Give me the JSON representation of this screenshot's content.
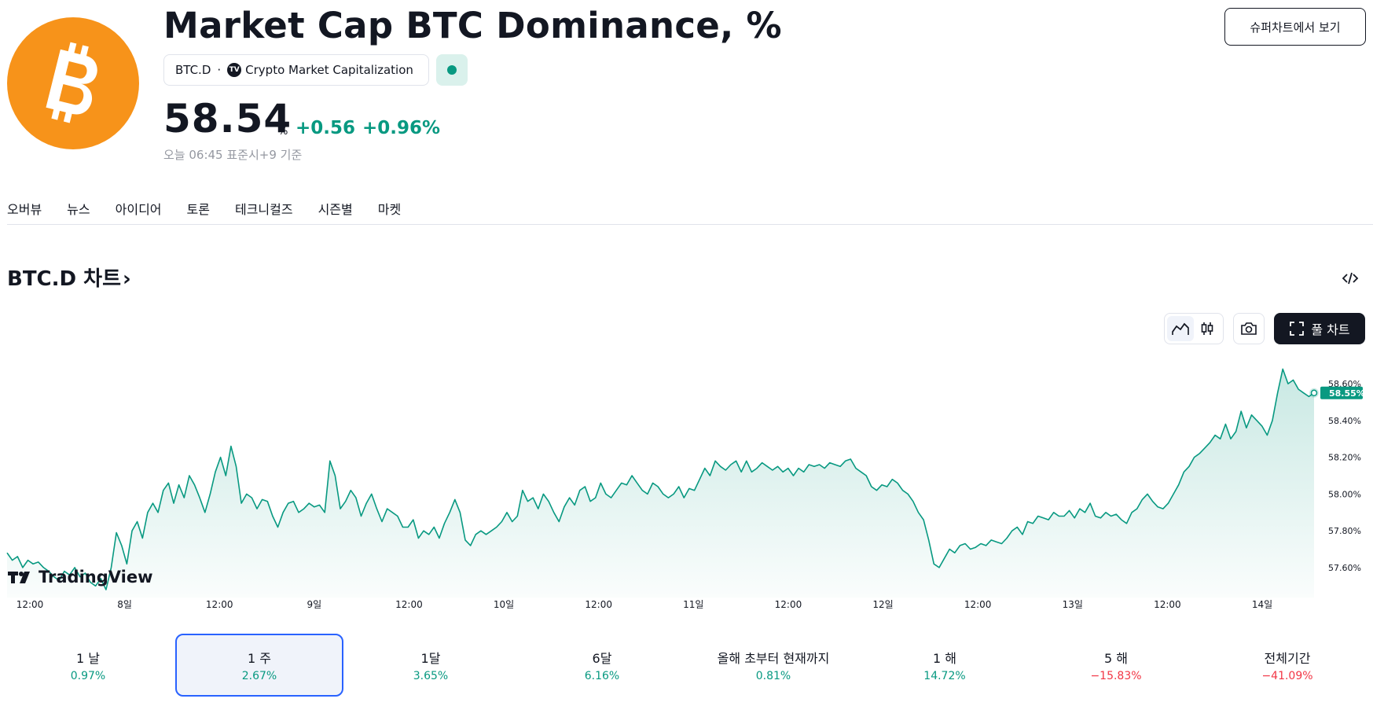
{
  "header": {
    "title": "Market Cap BTC Dominance, %",
    "symbol": "BTC.D",
    "exchange": "Crypto Market Capitalization",
    "exchange_badge": "TV",
    "price": "58.54",
    "price_unit": "%",
    "change_abs": "+0.56",
    "change_pct": "+0.96%",
    "timestamp": "오늘 06:45 표준시+9 기준",
    "supercharts_label": "슈퍼차트에서 보기",
    "status": "market-open",
    "logo_icon": "bitcoin-logo-icon",
    "logo_color": "#f7931a"
  },
  "tabs": [
    {
      "label": "오버뷰",
      "active": true
    },
    {
      "label": "뉴스",
      "active": false
    },
    {
      "label": "아이디어",
      "active": false
    },
    {
      "label": "토론",
      "active": false
    },
    {
      "label": "테크니컬즈",
      "active": false
    },
    {
      "label": "시즌별",
      "active": false
    },
    {
      "label": "마켓",
      "active": false
    }
  ],
  "chart_section": {
    "title": "BTC.D 차트",
    "chevron": "›",
    "full_chart_label": "풀 차트",
    "watermark": "TradingView",
    "icons": [
      "embed-code-icon",
      "area-chart-icon",
      "candles-icon",
      "camera-icon",
      "fullscreen-icon"
    ]
  },
  "chart_data": {
    "type": "area",
    "x_tick_labels": [
      "12:00",
      "8일",
      "12:00",
      "9일",
      "12:00",
      "10일",
      "12:00",
      "11일",
      "12:00",
      "12일",
      "12:00",
      "13일",
      "12:00",
      "14일"
    ],
    "y_tick_labels": [
      "58.60%",
      "58.40%",
      "58.20%",
      "58.00%",
      "57.80%",
      "57.60%"
    ],
    "y_ticks": [
      58.6,
      58.4,
      58.2,
      58.0,
      57.8,
      57.6
    ],
    "ylim": [
      57.48,
      58.72
    ],
    "last_value_label": "58.55%",
    "last_value": 58.55,
    "series": [
      {
        "values": [
          57.68,
          57.64,
          57.66,
          57.6,
          57.64,
          57.62,
          57.63,
          57.6,
          57.58,
          57.55,
          57.53,
          57.58,
          57.56,
          57.6,
          57.55,
          57.57,
          57.52,
          57.5,
          57.54,
          57.48,
          57.6,
          57.79,
          57.72,
          57.62,
          57.8,
          57.85,
          57.76,
          57.9,
          57.95,
          57.9,
          58.02,
          58.06,
          57.95,
          58.05,
          57.98,
          58.1,
          58.05,
          57.98,
          57.9,
          58.0,
          58.12,
          58.2,
          58.1,
          58.26,
          58.15,
          57.95,
          58.0,
          57.98,
          57.92,
          57.97,
          57.96,
          57.88,
          57.82,
          57.9,
          57.95,
          57.96,
          57.9,
          57.92,
          57.95,
          57.93,
          57.94,
          57.9,
          58.18,
          58.1,
          57.92,
          57.96,
          58.02,
          57.98,
          57.88,
          57.95,
          58.0,
          57.92,
          57.85,
          57.92,
          57.9,
          57.88,
          57.82,
          57.82,
          57.86,
          57.76,
          57.8,
          57.78,
          57.82,
          57.76,
          57.84,
          57.9,
          57.97,
          57.9,
          57.75,
          57.72,
          57.78,
          57.8,
          57.78,
          57.8,
          57.82,
          57.85,
          57.9,
          57.85,
          57.88,
          58.02,
          57.96,
          57.98,
          57.92,
          58.0,
          57.96,
          57.9,
          57.85,
          57.93,
          57.98,
          57.94,
          58.02,
          58.04,
          57.96,
          57.98,
          58.06,
          58.0,
          57.98,
          58.02,
          58.06,
          58.05,
          58.1,
          58.06,
          58.02,
          58.0,
          58.06,
          58.04,
          58.0,
          57.98,
          58.0,
          58.04,
          57.98,
          58.03,
          58.02,
          58.08,
          58.14,
          58.1,
          58.18,
          58.15,
          58.13,
          58.16,
          58.18,
          58.12,
          58.18,
          58.12,
          58.14,
          58.17,
          58.15,
          58.13,
          58.15,
          58.12,
          58.14,
          58.1,
          58.14,
          58.12,
          58.16,
          58.15,
          58.16,
          58.14,
          58.17,
          58.16,
          58.15,
          58.18,
          58.19,
          58.14,
          58.12,
          58.1,
          58.04,
          58.02,
          58.05,
          58.04,
          58.08,
          58.06,
          58.02,
          58.0,
          57.96,
          57.9,
          57.86,
          57.75,
          57.62,
          57.6,
          57.65,
          57.7,
          57.68,
          57.72,
          57.73,
          57.7,
          57.71,
          57.73,
          57.72,
          57.75,
          57.74,
          57.73,
          57.76,
          57.8,
          57.82,
          57.78,
          57.85,
          57.84,
          57.88,
          57.87,
          57.86,
          57.9,
          57.88,
          57.88,
          57.91,
          57.87,
          57.92,
          57.9,
          57.95,
          57.88,
          57.87,
          57.9,
          57.88,
          57.89,
          57.86,
          57.84,
          57.9,
          57.92,
          57.97,
          58.0,
          57.96,
          57.93,
          57.92,
          57.95,
          58.0,
          58.05,
          58.12,
          58.15,
          58.2,
          58.22,
          58.25,
          58.28,
          58.32,
          58.3,
          58.38,
          58.3,
          58.34,
          58.45,
          58.36,
          58.43,
          58.4,
          58.37,
          58.32,
          58.4,
          58.55,
          58.68,
          58.6,
          58.62,
          58.57,
          58.55,
          58.53,
          58.55
        ]
      }
    ]
  },
  "periods": [
    {
      "label": "1 날",
      "value": "0.97%",
      "sign": "pos",
      "active": false
    },
    {
      "label": "1 주",
      "value": "2.67%",
      "sign": "pos",
      "active": true
    },
    {
      "label": "1달",
      "value": "3.65%",
      "sign": "pos",
      "active": false
    },
    {
      "label": "6달",
      "value": "6.16%",
      "sign": "pos",
      "active": false
    },
    {
      "label": "올해 초부터 현재까지",
      "value": "0.81%",
      "sign": "pos",
      "active": false
    },
    {
      "label": "1 해",
      "value": "14.72%",
      "sign": "pos",
      "active": false
    },
    {
      "label": "5 해",
      "value": "−15.83%",
      "sign": "neg",
      "active": false
    },
    {
      "label": "전체기간",
      "value": "−41.09%",
      "sign": "neg",
      "active": false
    }
  ],
  "colors": {
    "accent_green": "#089981",
    "negative_red": "#f23645",
    "selected_border": "#2962ff",
    "text": "#131722",
    "muted": "#9598a1"
  }
}
